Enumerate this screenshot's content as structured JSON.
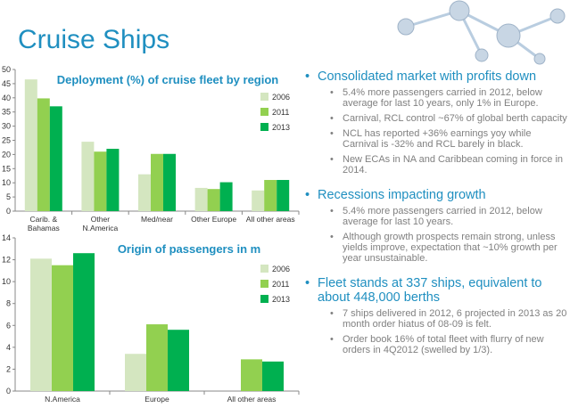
{
  "slide_title": "Cruise Ships",
  "colors": {
    "title": "#1f8fc0",
    "s2006": "#d4e6c0",
    "s2011": "#92d050",
    "s2013": "#00b050"
  },
  "chart_data": [
    {
      "type": "bar",
      "title": "Deployment (%)  of cruise fleet by region",
      "categories": [
        [
          "Carib. &",
          "Bahamas"
        ],
        [
          "Other",
          "N.America"
        ],
        [
          "Med/near"
        ],
        [
          "Other Europe"
        ],
        [
          "All other areas"
        ]
      ],
      "series": [
        {
          "name": "2006",
          "values": [
            46.5,
            24.5,
            13,
            8.2,
            7.3
          ]
        },
        {
          "name": "2011",
          "values": [
            39.8,
            21,
            20.2,
            7.8,
            11
          ]
        },
        {
          "name": "2013",
          "values": [
            37,
            22,
            20.2,
            10.2,
            11
          ]
        }
      ],
      "ylim": [
        0,
        50
      ],
      "yticks": [
        0,
        5,
        10,
        15,
        20,
        25,
        30,
        35,
        40,
        45,
        50
      ],
      "legend": "right"
    },
    {
      "type": "bar",
      "title": "Origin of passengers  in m",
      "categories": [
        [
          "N.America"
        ],
        [
          "Europe"
        ],
        [
          "All other areas"
        ]
      ],
      "series": [
        {
          "name": "2006",
          "values": [
            12.1,
            3.4,
            0
          ]
        },
        {
          "name": "2011",
          "values": [
            11.5,
            6.1,
            2.9
          ]
        },
        {
          "name": "2013",
          "values": [
            12.6,
            5.6,
            2.7
          ]
        }
      ],
      "ylim": [
        0,
        14
      ],
      "yticks": [
        0,
        2,
        4,
        6,
        8,
        10,
        12,
        14
      ],
      "legend": "right"
    }
  ],
  "bullets": [
    {
      "text": "Consolidated  market with profits down",
      "subs": [
        "5.4% more passengers carried in 2012, below average for last 10 years,  only 1% in Europe.",
        "Carnival,  RCL control ~67% of global berth capacity",
        "NCL has reported +36% earnings yoy while Carnival is -32% and RCL barely in black.",
        "New ECAs in NA and Caribbean coming in force in 2014."
      ]
    },
    {
      "text": "Recessions impacting growth",
      "subs": [
        "5.4% more passengers carried in 2012, below average for last 10 years.",
        "Although  growth prospects remain strong, unless yields improve, expectation  that ~10% growth per year unsustainable."
      ]
    },
    {
      "text": "Fleet stands at 337 ships, equivalent  to about 448,000 berths",
      "subs": [
        "7 ships delivered in 2012, 6 projected in 2013 as 20 month order hiatus of 08-09 is felt.",
        "Order book 16% of total fleet with flurry of new orders in 4Q2012 (swelled by 1/3)."
      ]
    }
  ]
}
